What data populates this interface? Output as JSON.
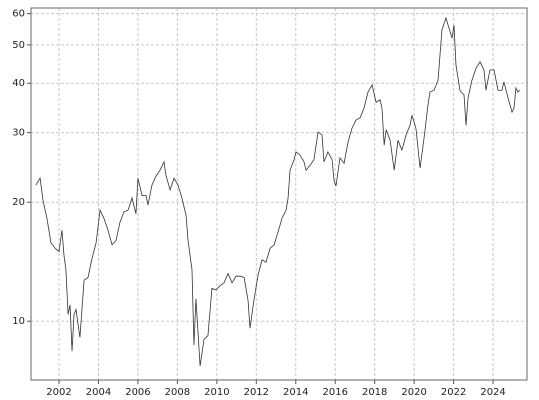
{
  "chart_data": {
    "type": "line",
    "yscale": "log",
    "grid": true,
    "xlim": [
      2000.58,
      2025.72
    ],
    "ylim": [
      7.1,
      62
    ],
    "xticks": [
      2002,
      2004,
      2006,
      2008,
      2010,
      2012,
      2014,
      2016,
      2018,
      2020,
      2022,
      2024
    ],
    "yticks": [
      10,
      20,
      30,
      40,
      50,
      60
    ],
    "series": [
      {
        "color": "#333333",
        "x": [
          2000.83,
          2001.04,
          2001.19,
          2001.39,
          2001.59,
          2001.8,
          2002.0,
          2002.15,
          2002.25,
          2002.35,
          2002.46,
          2002.56,
          2002.66,
          2002.76,
          2002.86,
          2003.06,
          2003.27,
          2003.47,
          2003.67,
          2003.88,
          2004.08,
          2004.28,
          2004.48,
          2004.69,
          2004.89,
          2005.09,
          2005.29,
          2005.5,
          2005.7,
          2005.9,
          2006.0,
          2006.21,
          2006.41,
          2006.51,
          2006.71,
          2006.92,
          2007.12,
          2007.32,
          2007.42,
          2007.63,
          2007.83,
          2008.03,
          2008.23,
          2008.44,
          2008.54,
          2008.74,
          2008.84,
          2008.94,
          2009.15,
          2009.35,
          2009.55,
          2009.75,
          2009.96,
          2010.16,
          2010.36,
          2010.57,
          2010.77,
          2010.97,
          2011.17,
          2011.38,
          2011.58,
          2011.68,
          2011.88,
          2012.09,
          2012.29,
          2012.49,
          2012.7,
          2012.9,
          2013.1,
          2013.3,
          2013.51,
          2013.61,
          2013.71,
          2013.91,
          2014.01,
          2014.22,
          2014.42,
          2014.52,
          2014.72,
          2014.92,
          2015.13,
          2015.33,
          2015.43,
          2015.63,
          2015.84,
          2015.94,
          2016.04,
          2016.24,
          2016.45,
          2016.65,
          2016.85,
          2017.06,
          2017.26,
          2017.46,
          2017.66,
          2017.87,
          2018.07,
          2018.27,
          2018.37,
          2018.48,
          2018.58,
          2018.78,
          2018.99,
          2019.18,
          2019.38,
          2019.59,
          2019.79,
          2019.89,
          2020.09,
          2020.3,
          2020.5,
          2020.7,
          2020.8,
          2021.01,
          2021.21,
          2021.31,
          2021.41,
          2021.61,
          2021.72,
          2021.92,
          2022.02,
          2022.12,
          2022.32,
          2022.53,
          2022.63,
          2022.73,
          2022.93,
          2023.14,
          2023.34,
          2023.54,
          2023.64,
          2023.84,
          2024.05,
          2024.25,
          2024.45,
          2024.55,
          2024.76,
          2024.96,
          2025.06,
          2025.16,
          2025.26,
          2025.36
        ],
        "values": [
          22.1,
          23.0,
          20.2,
          18.2,
          15.8,
          15.3,
          15.0,
          17.0,
          14.7,
          13.5,
          10.4,
          11.0,
          8.4,
          10.4,
          10.7,
          9.1,
          12.7,
          12.9,
          14.4,
          15.8,
          19.1,
          18.2,
          17.0,
          15.6,
          16.0,
          17.8,
          18.9,
          19.1,
          20.5,
          18.7,
          23.0,
          20.8,
          20.8,
          19.7,
          22.1,
          23.3,
          24.1,
          25.3,
          23.4,
          21.5,
          23.0,
          22.1,
          20.5,
          18.5,
          16.0,
          13.5,
          8.7,
          11.4,
          7.7,
          9.0,
          9.2,
          12.1,
          12.0,
          12.3,
          12.5,
          13.2,
          12.5,
          13.0,
          13.0,
          12.9,
          11.3,
          9.6,
          11.3,
          13.1,
          14.3,
          14.1,
          15.3,
          15.6,
          16.8,
          18.2,
          19.1,
          20.5,
          24.1,
          25.6,
          26.8,
          26.3,
          25.3,
          24.1,
          24.8,
          25.6,
          30.1,
          29.6,
          25.3,
          26.8,
          25.6,
          22.7,
          22.0,
          25.9,
          25.1,
          28.4,
          30.8,
          32.3,
          32.7,
          34.6,
          38.0,
          39.6,
          35.8,
          36.3,
          34.6,
          27.9,
          30.5,
          28.7,
          24.1,
          28.7,
          27.1,
          29.6,
          31.3,
          33.2,
          30.8,
          24.4,
          29.0,
          35.2,
          38.0,
          38.4,
          40.7,
          47.1,
          54.6,
          58.5,
          56.1,
          52.0,
          56.1,
          44.5,
          38.4,
          37.3,
          31.3,
          36.7,
          40.7,
          43.7,
          45.3,
          43.2,
          38.4,
          43.2,
          43.2,
          38.4,
          38.4,
          40.3,
          36.7,
          33.8,
          34.6,
          38.9,
          38.0,
          38.4
        ]
      }
    ]
  }
}
